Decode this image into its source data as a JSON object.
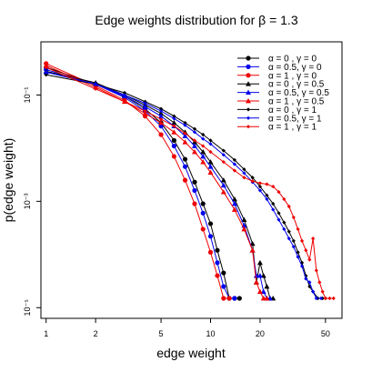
{
  "chart_data": {
    "type": "line",
    "title": "Edge weights distribution for β = 1.3",
    "xlabel": "edge weight",
    "ylabel": "p(edge weight)",
    "x_scale": "log",
    "y_scale": "log",
    "xlim": [
      0.93,
      63
    ],
    "ylim": [
      6.3e-06,
      1.0
    ],
    "x_ticks": [
      1,
      2,
      5,
      10,
      20,
      50
    ],
    "x_tick_labels": [
      "1",
      "2",
      "5",
      "10",
      "20",
      "50"
    ],
    "y_ticks": [
      1e-05,
      0.001,
      0.1
    ],
    "y_tick_labels": [
      "10⁻⁵",
      "10⁻³",
      "10⁻¹"
    ],
    "grid": false,
    "legend_position": "top-right",
    "series": [
      {
        "name": "α = 0   , γ = 0",
        "color": "#000000",
        "marker": "circle",
        "points": [
          [
            1,
            0.33
          ],
          [
            2,
            0.16
          ],
          [
            3,
            0.095
          ],
          [
            4,
            0.055
          ],
          [
            5,
            0.03
          ],
          [
            6,
            0.014
          ],
          [
            7,
            0.0062
          ],
          [
            8,
            0.0023
          ],
          [
            9,
            0.0009
          ],
          [
            10,
            0.00038
          ],
          [
            11,
            0.00012
          ],
          [
            12,
            4.5e-05
          ],
          [
            13,
            1.5e-05
          ],
          [
            14,
            1.5e-05
          ],
          [
            15,
            1.5e-05
          ]
        ]
      },
      {
        "name": "α = 0.5, γ = 0",
        "color": "#0000ee",
        "marker": "circle",
        "points": [
          [
            1,
            0.3
          ],
          [
            2,
            0.16
          ],
          [
            3,
            0.09
          ],
          [
            4,
            0.05
          ],
          [
            5,
            0.026
          ],
          [
            6,
            0.011
          ],
          [
            7,
            0.0045
          ],
          [
            8,
            0.0016
          ],
          [
            9,
            0.0006
          ],
          [
            10,
            0.00022
          ],
          [
            11,
            7e-05
          ],
          [
            12,
            2.5e-05
          ],
          [
            13,
            1.5e-05
          ],
          [
            14,
            1.5e-05
          ]
        ]
      },
      {
        "name": "α = 1   , γ = 0",
        "color": "#ee0000",
        "marker": "circle",
        "points": [
          [
            1,
            0.39
          ],
          [
            2,
            0.15
          ],
          [
            3,
            0.08
          ],
          [
            4,
            0.04
          ],
          [
            5,
            0.018
          ],
          [
            6,
            0.007
          ],
          [
            7,
            0.0025
          ],
          [
            8,
            0.0009
          ],
          [
            9,
            0.0003
          ],
          [
            10,
            0.00011
          ],
          [
            11,
            4e-05
          ],
          [
            12,
            1.5e-05
          ],
          [
            13,
            1.5e-05
          ]
        ]
      },
      {
        "name": "α = 0   , γ = 0.5",
        "color": "#000000",
        "marker": "triangle",
        "points": [
          [
            1,
            0.28
          ],
          [
            2,
            0.17
          ],
          [
            3,
            0.1
          ],
          [
            4,
            0.065
          ],
          [
            5,
            0.045
          ],
          [
            6,
            0.03
          ],
          [
            7,
            0.02
          ],
          [
            8,
            0.013
          ],
          [
            9,
            0.0085
          ],
          [
            10,
            0.0055
          ],
          [
            12,
            0.0025
          ],
          [
            14,
            0.0011
          ],
          [
            16,
            0.00045
          ],
          [
            18,
            0.00016
          ],
          [
            19,
            3e-05
          ],
          [
            20,
            7e-05
          ],
          [
            21,
            4e-05
          ],
          [
            22,
            2.5e-05
          ],
          [
            23,
            1.5e-05
          ],
          [
            24,
            1.5e-05
          ]
        ]
      },
      {
        "name": "α = 0.5, γ = 0.5",
        "color": "#0000ee",
        "marker": "triangle",
        "points": [
          [
            1,
            0.27
          ],
          [
            2,
            0.16
          ],
          [
            3,
            0.095
          ],
          [
            4,
            0.06
          ],
          [
            5,
            0.04
          ],
          [
            6,
            0.026
          ],
          [
            7,
            0.017
          ],
          [
            8,
            0.011
          ],
          [
            9,
            0.007
          ],
          [
            10,
            0.0045
          ],
          [
            12,
            0.002
          ],
          [
            14,
            0.0009
          ],
          [
            16,
            0.00035
          ],
          [
            18,
            0.00012
          ],
          [
            19,
            4e-05
          ],
          [
            20,
            4e-05
          ],
          [
            21,
            2e-05
          ],
          [
            22,
            1.5e-05
          ],
          [
            23,
            1.5e-05
          ]
        ]
      },
      {
        "name": "α = 1   , γ = 0.5",
        "color": "#ee0000",
        "marker": "triangle",
        "points": [
          [
            1,
            0.36
          ],
          [
            2,
            0.14
          ],
          [
            3,
            0.075
          ],
          [
            4,
            0.045
          ],
          [
            5,
            0.03
          ],
          [
            6,
            0.02
          ],
          [
            7,
            0.013
          ],
          [
            8,
            0.0085
          ],
          [
            9,
            0.0055
          ],
          [
            10,
            0.0035
          ],
          [
            12,
            0.0015
          ],
          [
            14,
            0.0007
          ],
          [
            16,
            0.0003
          ],
          [
            18,
            0.00012
          ],
          [
            19,
            3e-05
          ],
          [
            20,
            2e-05
          ],
          [
            21,
            1.5e-05
          ],
          [
            22,
            1.5e-05
          ]
        ]
      },
      {
        "name": "α = 0   , γ = 1",
        "color": "#000000",
        "marker": "diamond",
        "points": [
          [
            1,
            0.24
          ],
          [
            2,
            0.16
          ],
          [
            3,
            0.11
          ],
          [
            4,
            0.075
          ],
          [
            5,
            0.055
          ],
          [
            6,
            0.04
          ],
          [
            7,
            0.03
          ],
          [
            8,
            0.023
          ],
          [
            9,
            0.018
          ],
          [
            10,
            0.014
          ],
          [
            12,
            0.009
          ],
          [
            14,
            0.006
          ],
          [
            16,
            0.004
          ],
          [
            18,
            0.0028
          ],
          [
            20,
            0.0019
          ],
          [
            22,
            0.0013
          ],
          [
            24,
            0.0009
          ],
          [
            26,
            0.0006
          ],
          [
            28,
            0.0004
          ],
          [
            30,
            0.00027
          ],
          [
            32,
            0.00018
          ],
          [
            34,
            0.00011
          ],
          [
            36,
            7e-05
          ],
          [
            38,
            4e-05
          ],
          [
            40,
            2.5e-05
          ],
          [
            42,
            2e-05
          ],
          [
            45,
            1.5e-05
          ],
          [
            48,
            1.5e-05
          ],
          [
            50,
            1.5e-05
          ]
        ]
      },
      {
        "name": "α = 0.5, γ = 1",
        "color": "#0000ee",
        "marker": "diamond",
        "points": [
          [
            1,
            0.27
          ],
          [
            2,
            0.16
          ],
          [
            3,
            0.1
          ],
          [
            4,
            0.07
          ],
          [
            5,
            0.05
          ],
          [
            6,
            0.036
          ],
          [
            7,
            0.027
          ],
          [
            8,
            0.02
          ],
          [
            9,
            0.015
          ],
          [
            10,
            0.012
          ],
          [
            12,
            0.0075
          ],
          [
            14,
            0.005
          ],
          [
            16,
            0.0034
          ],
          [
            18,
            0.0023
          ],
          [
            20,
            0.0016
          ],
          [
            22,
            0.0011
          ],
          [
            24,
            0.0007
          ],
          [
            26,
            0.00045
          ],
          [
            28,
            0.0003
          ],
          [
            30,
            0.0002
          ],
          [
            32,
            0.00014
          ],
          [
            34,
            9e-05
          ],
          [
            36,
            6e-05
          ],
          [
            38,
            3.5e-05
          ],
          [
            40,
            3e-05
          ],
          [
            42,
            2e-05
          ],
          [
            44,
            1.5e-05
          ],
          [
            47,
            1.5e-05
          ]
        ]
      },
      {
        "name": "α = 1   , γ = 1",
        "color": "#ee0000",
        "marker": "diamond",
        "points": [
          [
            1,
            0.33
          ],
          [
            2,
            0.13
          ],
          [
            3,
            0.075
          ],
          [
            4,
            0.05
          ],
          [
            5,
            0.035
          ],
          [
            6,
            0.026
          ],
          [
            7,
            0.019
          ],
          [
            8,
            0.014
          ],
          [
            9,
            0.011
          ],
          [
            10,
            0.0085
          ],
          [
            12,
            0.0055
          ],
          [
            14,
            0.0038
          ],
          [
            16,
            0.0028
          ],
          [
            18,
            0.0024
          ],
          [
            20,
            0.0022
          ],
          [
            22,
            0.0021
          ],
          [
            24,
            0.0019
          ],
          [
            26,
            0.0015
          ],
          [
            28,
            0.0011
          ],
          [
            30,
            0.0008
          ],
          [
            32,
            0.0005
          ],
          [
            34,
            0.0003
          ],
          [
            36,
            0.00018
          ],
          [
            38,
            0.00012
          ],
          [
            40,
            8e-05
          ],
          [
            42,
            0.0002
          ],
          [
            44,
            5e-05
          ],
          [
            46,
            3e-05
          ],
          [
            48,
            2e-05
          ],
          [
            50,
            1.5e-05
          ],
          [
            53,
            1.5e-05
          ],
          [
            56,
            1.5e-05
          ]
        ]
      }
    ]
  }
}
